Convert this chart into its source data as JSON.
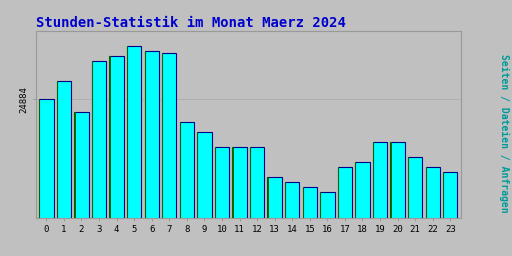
{
  "title": "Stunden-Statistik im Monat Maerz 2024",
  "ylabel": "Seiten / Dateien / Anfragen",
  "xlabel_values": [
    0,
    1,
    2,
    3,
    4,
    5,
    6,
    7,
    8,
    9,
    10,
    11,
    12,
    13,
    14,
    15,
    16,
    17,
    18,
    19,
    20,
    21,
    22,
    23
  ],
  "values": [
    24884,
    24920,
    24860,
    24960,
    24970,
    24990,
    24980,
    24975,
    24840,
    24820,
    24790,
    24790,
    24790,
    24730,
    24720,
    24710,
    24700,
    24750,
    24760,
    24800,
    24800,
    24770,
    24750,
    24740
  ],
  "bar_color": "#00FFFF",
  "bar_edge_color": "#000088",
  "bar_edge_color_green": "#006600",
  "background_color": "#C0C0C0",
  "plot_bg_color": "#C0C0C0",
  "title_color": "#0000CC",
  "ylabel_color": "#009999",
  "tick_label_color": "#000000",
  "title_fontsize": 10,
  "ylabel_fontsize": 7,
  "ytick_label": "24884",
  "ylim_min": 24650,
  "ylim_max": 25020,
  "bar_width": 0.82
}
